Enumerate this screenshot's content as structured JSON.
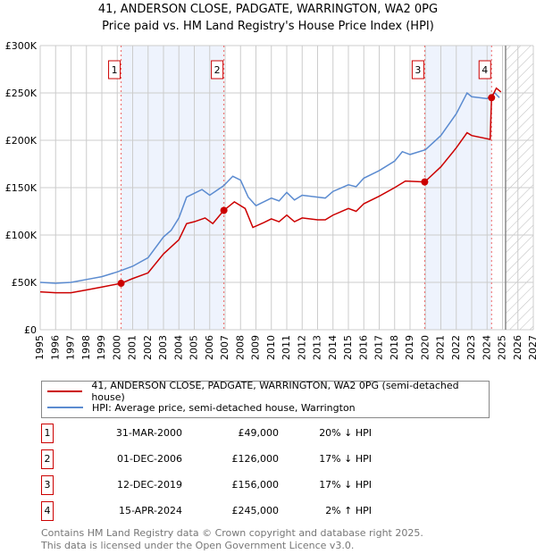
{
  "chart_data": {
    "type": "line",
    "title": "41, ANDERSON CLOSE, PADGATE, WARRINGTON, WA2 0PG",
    "subtitle": "Price paid vs. HM Land Registry's House Price Index (HPI)",
    "xlim": [
      1995,
      2027
    ],
    "ylim": [
      0,
      300000
    ],
    "x_ticks": [
      "1995",
      "1996",
      "1997",
      "1998",
      "1999",
      "2000",
      "2001",
      "2002",
      "2003",
      "2004",
      "2005",
      "2006",
      "2007",
      "2008",
      "2009",
      "2010",
      "2011",
      "2012",
      "2013",
      "2014",
      "2015",
      "2016",
      "2017",
      "2018",
      "2019",
      "2020",
      "2021",
      "2022",
      "2023",
      "2024",
      "2025",
      "2026",
      "2027"
    ],
    "y_ticks": [
      {
        "v": 0,
        "label": "£0"
      },
      {
        "v": 50000,
        "label": "£50K"
      },
      {
        "v": 100000,
        "label": "£100K"
      },
      {
        "v": 150000,
        "label": "£150K"
      },
      {
        "v": 200000,
        "label": "£200K"
      },
      {
        "v": 250000,
        "label": "£250K"
      },
      {
        "v": 300000,
        "label": "£300K"
      }
    ],
    "forecast_start": 2025.2,
    "series": [
      {
        "name": "41, ANDERSON CLOSE, PADGATE, WARRINGTON, WA2 0PG (semi-detached house)",
        "color": "#cc0000",
        "points": [
          [
            1995,
            40000
          ],
          [
            1996,
            39000
          ],
          [
            1997,
            39000
          ],
          [
            1998,
            42000
          ],
          [
            1999,
            45000
          ],
          [
            2000.25,
            49000
          ],
          [
            2001,
            54000
          ],
          [
            2002,
            60000
          ],
          [
            2003,
            80000
          ],
          [
            2004,
            95000
          ],
          [
            2004.5,
            112000
          ],
          [
            2005,
            114000
          ],
          [
            2005.7,
            118000
          ],
          [
            2006.2,
            112000
          ],
          [
            2006.92,
            126000
          ],
          [
            2007.6,
            135000
          ],
          [
            2008.3,
            128000
          ],
          [
            2008.8,
            108000
          ],
          [
            2009.5,
            113000
          ],
          [
            2010,
            117000
          ],
          [
            2010.5,
            114000
          ],
          [
            2011,
            121000
          ],
          [
            2011.5,
            114000
          ],
          [
            2012,
            118000
          ],
          [
            2013,
            116000
          ],
          [
            2013.5,
            116000
          ],
          [
            2014,
            121000
          ],
          [
            2015,
            128000
          ],
          [
            2015.5,
            125000
          ],
          [
            2016,
            133000
          ],
          [
            2017,
            141000
          ],
          [
            2018,
            150000
          ],
          [
            2018.7,
            157000
          ],
          [
            2019.95,
            156000
          ],
          [
            2021,
            172000
          ],
          [
            2022,
            192000
          ],
          [
            2022.7,
            208000
          ],
          [
            2023,
            205000
          ],
          [
            2024.2,
            201000
          ],
          [
            2024.29,
            245000
          ],
          [
            2024.6,
            255000
          ],
          [
            2024.9,
            251000
          ]
        ]
      },
      {
        "name": "HPI: Average price, semi-detached house, Warrington",
        "color": "#5b8bd0",
        "points": [
          [
            1995,
            50000
          ],
          [
            1996,
            49000
          ],
          [
            1997,
            50000
          ],
          [
            1998,
            53000
          ],
          [
            1999,
            56000
          ],
          [
            2000,
            61000
          ],
          [
            2001,
            67000
          ],
          [
            2002,
            76000
          ],
          [
            2003,
            98000
          ],
          [
            2003.5,
            105000
          ],
          [
            2004,
            118000
          ],
          [
            2004.5,
            140000
          ],
          [
            2005,
            144000
          ],
          [
            2005.5,
            148000
          ],
          [
            2006,
            142000
          ],
          [
            2006.9,
            152000
          ],
          [
            2007.5,
            162000
          ],
          [
            2008,
            158000
          ],
          [
            2008.5,
            140000
          ],
          [
            2009,
            131000
          ],
          [
            2010,
            139000
          ],
          [
            2010.5,
            136000
          ],
          [
            2011,
            145000
          ],
          [
            2011.5,
            137000
          ],
          [
            2012,
            142000
          ],
          [
            2013,
            140000
          ],
          [
            2013.5,
            139000
          ],
          [
            2014,
            146000
          ],
          [
            2015,
            153000
          ],
          [
            2015.5,
            151000
          ],
          [
            2016,
            160000
          ],
          [
            2017,
            168000
          ],
          [
            2018,
            178000
          ],
          [
            2018.5,
            188000
          ],
          [
            2019,
            185000
          ],
          [
            2020,
            190000
          ],
          [
            2021,
            205000
          ],
          [
            2022,
            228000
          ],
          [
            2022.7,
            250000
          ],
          [
            2023,
            246000
          ],
          [
            2024,
            244000
          ],
          [
            2024.5,
            250000
          ],
          [
            2024.8,
            245000
          ]
        ]
      }
    ],
    "sales": [
      {
        "num": "1",
        "x": 2000.25,
        "price": 49000,
        "date": "31-MAR-2000",
        "price_label": "£49,000",
        "hpi": "20% ↓ HPI"
      },
      {
        "num": "2",
        "x": 2006.92,
        "price": 126000,
        "date": "01-DEC-2006",
        "price_label": "£126,000",
        "hpi": "17% ↓ HPI"
      },
      {
        "num": "3",
        "x": 2019.95,
        "price": 156000,
        "date": "12-DEC-2019",
        "price_label": "£156,000",
        "hpi": "17% ↓ HPI"
      },
      {
        "num": "4",
        "x": 2024.29,
        "price": 245000,
        "date": "15-APR-2024",
        "price_label": "£245,000",
        "hpi": "2% ↑ HPI"
      }
    ]
  },
  "footer": [
    "Contains HM Land Registry data © Crown copyright and database right 2025.",
    "This data is licensed under the Open Government Licence v3.0."
  ]
}
